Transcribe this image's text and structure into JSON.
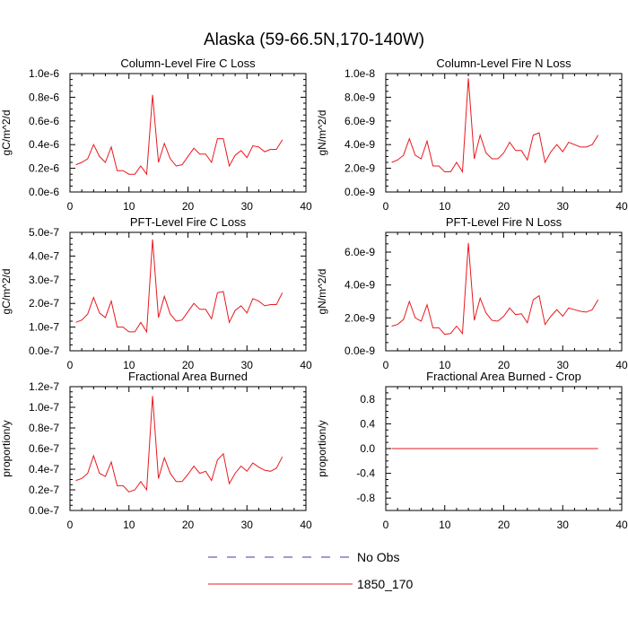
{
  "figure": {
    "title": "Alaska (59-66.5N,170-140W)",
    "line_color": "#e8191f",
    "obs_color": "#3b3bb0"
  },
  "legend": {
    "location": "bottom-center",
    "entries": [
      {
        "label": "No Obs",
        "style": "dashed",
        "color": "#3b3bb0"
      },
      {
        "label": "1850_170",
        "style": "solid",
        "color": "#e8191f"
      }
    ]
  },
  "chart_data": [
    {
      "type": "line",
      "title": "Column-Level Fire C Loss",
      "ylabel": "gC/m^2/d",
      "xlim": [
        0,
        40
      ],
      "ylim": [
        0,
        1e-06
      ],
      "xticks": [
        "0",
        "10",
        "20",
        "30",
        "40"
      ],
      "yticks": [
        0,
        2e-07,
        4e-07,
        6e-07,
        8e-07,
        1e-06
      ],
      "ytick_labels": [
        "0.0e-6",
        "0.2e-6",
        "0.4e-6",
        "0.6e-6",
        "0.8e-6",
        "1.0e-6"
      ],
      "series": [
        {
          "name": "1850_170",
          "x": [
            1,
            2,
            3,
            4,
            5,
            6,
            7,
            8,
            9,
            10,
            11,
            12,
            13,
            14,
            15,
            16,
            17,
            18,
            19,
            20,
            21,
            22,
            23,
            24,
            25,
            26,
            27,
            28,
            29,
            30,
            31,
            32,
            33,
            34,
            35,
            36
          ],
          "values": [
            2.3e-07,
            2.5e-07,
            2.8e-07,
            4e-07,
            3e-07,
            2.5e-07,
            3.8e-07,
            1.8e-07,
            1.8e-07,
            1.5e-07,
            1.5e-07,
            2.2e-07,
            1.5e-07,
            8.2e-07,
            2.5e-07,
            4.1e-07,
            2.8e-07,
            2.2e-07,
            2.3e-07,
            3e-07,
            3.7e-07,
            3.2e-07,
            3.2e-07,
            2.5e-07,
            4.5e-07,
            4.5e-07,
            2.2e-07,
            3.1e-07,
            3.5e-07,
            2.9e-07,
            3.9e-07,
            3.8e-07,
            3.4e-07,
            3.6e-07,
            3.6e-07,
            4.4e-07
          ]
        }
      ]
    },
    {
      "type": "line",
      "title": "Column-Level Fire N Loss",
      "ylabel": "gN/m^2/d",
      "xlim": [
        0,
        40
      ],
      "ylim": [
        0,
        1e-08
      ],
      "xticks": [
        "0",
        "10",
        "20",
        "30",
        "40"
      ],
      "yticks": [
        0,
        2e-09,
        4e-09,
        6e-09,
        8e-09,
        1e-08
      ],
      "ytick_labels": [
        "0.0e-9",
        "2.0e-9",
        "4.0e-9",
        "6.0e-9",
        "8.0e-9",
        "1.0e-8"
      ],
      "series": [
        {
          "name": "1850_170",
          "x": [
            1,
            2,
            3,
            4,
            5,
            6,
            7,
            8,
            9,
            10,
            11,
            12,
            13,
            14,
            15,
            16,
            17,
            18,
            19,
            20,
            21,
            22,
            23,
            24,
            25,
            26,
            27,
            28,
            29,
            30,
            31,
            32,
            33,
            34,
            35,
            36
          ],
          "values": [
            2.5e-09,
            2.7e-09,
            3.1e-09,
            4.5e-09,
            3.1e-09,
            2.8e-09,
            4.3e-09,
            2.2e-09,
            2.2e-09,
            1.7e-09,
            1.7e-09,
            2.5e-09,
            1.7e-09,
            9.6e-09,
            2.8e-09,
            4.8e-09,
            3.3e-09,
            2.8e-09,
            2.8e-09,
            3.3e-09,
            4.2e-09,
            3.5e-09,
            3.5e-09,
            2.7e-09,
            4.8e-09,
            5e-09,
            2.5e-09,
            3.4e-09,
            4e-09,
            3.4e-09,
            4.2e-09,
            4e-09,
            3.8e-09,
            3.8e-09,
            4e-09,
            4.8e-09
          ]
        }
      ]
    },
    {
      "type": "line",
      "title": "PFT-Level Fire C Loss",
      "ylabel": "gC/m^2/d",
      "xlim": [
        0,
        40
      ],
      "ylim": [
        0,
        5e-07
      ],
      "xticks": [
        "0",
        "10",
        "20",
        "30",
        "40"
      ],
      "yticks": [
        0,
        1e-07,
        2e-07,
        3e-07,
        4e-07,
        5e-07
      ],
      "ytick_labels": [
        "0.0e-7",
        "1.0e-7",
        "2.0e-7",
        "3.0e-7",
        "4.0e-7",
        "5.0e-7"
      ],
      "series": [
        {
          "name": "1850_170",
          "x": [
            1,
            2,
            3,
            4,
            5,
            6,
            7,
            8,
            9,
            10,
            11,
            12,
            13,
            14,
            15,
            16,
            17,
            18,
            19,
            20,
            21,
            22,
            23,
            24,
            25,
            26,
            27,
            28,
            29,
            30,
            31,
            32,
            33,
            34,
            35,
            36
          ],
          "values": [
            1.2e-07,
            1.3e-07,
            1.55e-07,
            2.25e-07,
            1.6e-07,
            1.4e-07,
            2.1e-07,
            1e-07,
            1e-07,
            8e-08,
            8e-08,
            1.2e-07,
            8e-08,
            4.7e-07,
            1.4e-07,
            2.3e-07,
            1.55e-07,
            1.25e-07,
            1.3e-07,
            1.65e-07,
            2e-07,
            1.75e-07,
            1.75e-07,
            1.35e-07,
            2.45e-07,
            2.5e-07,
            1.2e-07,
            1.7e-07,
            1.9e-07,
            1.6e-07,
            2.2e-07,
            2.1e-07,
            1.9e-07,
            1.95e-07,
            1.95e-07,
            2.45e-07
          ]
        }
      ]
    },
    {
      "type": "line",
      "title": "PFT-Level Fire N Loss",
      "ylabel": "gN/m^2/d",
      "xlim": [
        0,
        40
      ],
      "ylim": [
        0,
        7.2e-09
      ],
      "xticks": [
        "0",
        "10",
        "20",
        "30",
        "40"
      ],
      "yticks": [
        0,
        2e-09,
        4e-09,
        6e-09
      ],
      "ytick_labels": [
        "0.0e-9",
        "2.0e-9",
        "4.0e-9",
        "6.0e-9"
      ],
      "series": [
        {
          "name": "1850_170",
          "x": [
            1,
            2,
            3,
            4,
            5,
            6,
            7,
            8,
            9,
            10,
            11,
            12,
            13,
            14,
            15,
            16,
            17,
            18,
            19,
            20,
            21,
            22,
            23,
            24,
            25,
            26,
            27,
            28,
            29,
            30,
            31,
            32,
            33,
            34,
            35,
            36
          ],
          "values": [
            1.5e-09,
            1.6e-09,
            1.9e-09,
            3e-09,
            2e-09,
            1.8e-09,
            2.8e-09,
            1.4e-09,
            1.4e-09,
            1e-09,
            1.05e-09,
            1.5e-09,
            1.05e-09,
            6.55e-09,
            1.85e-09,
            3.2e-09,
            2.3e-09,
            1.85e-09,
            1.8e-09,
            2.1e-09,
            2.6e-09,
            2.2e-09,
            2.25e-09,
            1.7e-09,
            3.1e-09,
            3.35e-09,
            1.6e-09,
            2.1e-09,
            2.5e-09,
            2.1e-09,
            2.6e-09,
            2.5e-09,
            2.4e-09,
            2.35e-09,
            2.5e-09,
            3.1e-09
          ]
        }
      ]
    },
    {
      "type": "line",
      "title": "Fractional Area Burned",
      "ylabel": "proportion/y",
      "xlim": [
        0,
        40
      ],
      "ylim": [
        0,
        1.2e-07
      ],
      "xticks": [
        "0",
        "10",
        "20",
        "30",
        "40"
      ],
      "yticks": [
        0,
        2e-08,
        4e-08,
        6e-08,
        8e-08,
        1e-07,
        1.2e-07
      ],
      "ytick_labels": [
        "0.0e-7",
        "0.2e-7",
        "0.4e-7",
        "0.6e-7",
        "0.8e-7",
        "1.0e-7",
        "1.2e-7"
      ],
      "series": [
        {
          "name": "1850_170",
          "x": [
            1,
            2,
            3,
            4,
            5,
            6,
            7,
            8,
            9,
            10,
            11,
            12,
            13,
            14,
            15,
            16,
            17,
            18,
            19,
            20,
            21,
            22,
            23,
            24,
            25,
            26,
            27,
            28,
            29,
            30,
            31,
            32,
            33,
            34,
            35,
            36
          ],
          "values": [
            2.9e-08,
            3.1e-08,
            3.6e-08,
            5.3e-08,
            3.6e-08,
            3.3e-08,
            4.7e-08,
            2.4e-08,
            2.4e-08,
            1.8e-08,
            2e-08,
            2.8e-08,
            2e-08,
            1.11e-07,
            3.1e-08,
            5.1e-08,
            3.6e-08,
            2.8e-08,
            2.8e-08,
            3.5e-08,
            4.3e-08,
            3.6e-08,
            3.8e-08,
            2.9e-08,
            4.9e-08,
            5.5e-08,
            2.6e-08,
            3.6e-08,
            4.3e-08,
            3.8e-08,
            4.6e-08,
            4.2e-08,
            3.9e-08,
            3.8e-08,
            4.1e-08,
            5.2e-08
          ]
        }
      ]
    },
    {
      "type": "line",
      "title": "Fractional Area Burned - Crop",
      "ylabel": "proportion/y",
      "xlim": [
        0,
        40
      ],
      "ylim": [
        -1,
        1
      ],
      "xticks": [
        "0",
        "10",
        "20",
        "30",
        "40"
      ],
      "yticks": [
        -0.8,
        -0.4,
        0,
        0.4,
        0.8
      ],
      "ytick_labels": [
        "-0.8",
        "-0.4",
        "0.0",
        "0.4",
        "0.8"
      ],
      "series": [
        {
          "name": "1850_170",
          "x": [
            1,
            36
          ],
          "values": [
            0,
            0
          ]
        }
      ]
    }
  ]
}
